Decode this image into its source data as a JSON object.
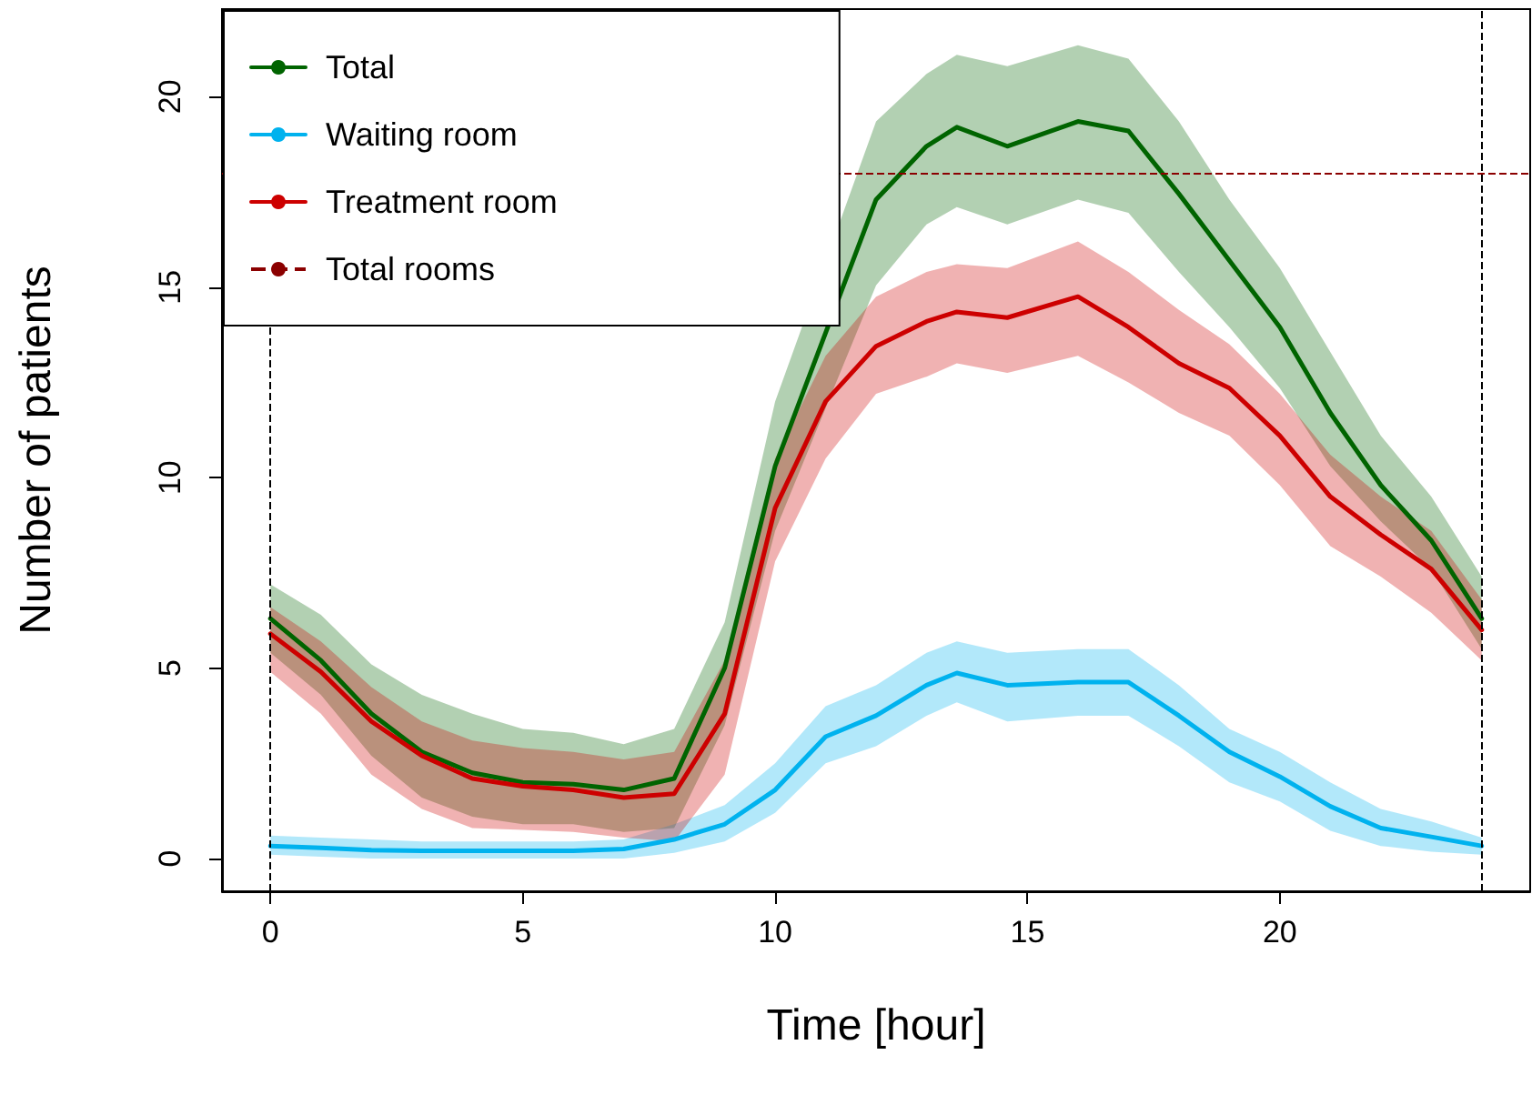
{
  "chart_data": {
    "type": "line",
    "xlabel": "Time [hour]",
    "ylabel": "Number of patients",
    "x": [
      0,
      1,
      2,
      3,
      4,
      5,
      6,
      7,
      8,
      9,
      10,
      11,
      12,
      13,
      13.6,
      14.6,
      16,
      17,
      18,
      19,
      20,
      21,
      22,
      23,
      24
    ],
    "series": [
      {
        "name": "Total",
        "color": "#006400",
        "x": [
          0,
          1,
          2,
          3,
          4,
          5,
          6,
          7,
          8,
          9,
          10,
          12,
          13,
          13.6,
          14.6,
          16,
          17,
          18,
          19,
          20,
          21,
          22,
          23,
          24
        ],
        "values": [
          6.3,
          5.2,
          3.8,
          2.8,
          2.25,
          2.0,
          1.95,
          1.8,
          2.1,
          5.0,
          10.3,
          17.3,
          18.7,
          19.2,
          18.7,
          19.35,
          19.1,
          17.45,
          15.7,
          13.95,
          11.7,
          9.8,
          8.35,
          6.3
        ],
        "upper": [
          7.2,
          6.4,
          5.1,
          4.3,
          3.8,
          3.4,
          3.3,
          3.0,
          3.4,
          6.2,
          12.0,
          19.35,
          20.6,
          21.1,
          20.8,
          21.35,
          21.0,
          19.35,
          17.3,
          15.5,
          13.3,
          11.1,
          9.5,
          7.4
        ],
        "lower": [
          5.4,
          4.3,
          2.7,
          1.6,
          1.1,
          0.9,
          0.9,
          0.7,
          0.8,
          3.5,
          8.6,
          15.05,
          16.65,
          17.1,
          16.65,
          17.3,
          16.95,
          15.4,
          13.95,
          12.35,
          10.3,
          8.85,
          7.6,
          5.5
        ]
      },
      {
        "name": "Waiting room",
        "color": "#00b2ee",
        "values": [
          0.33,
          0.28,
          0.22,
          0.2,
          0.2,
          0.2,
          0.2,
          0.25,
          0.5,
          0.9,
          1.8,
          3.2,
          3.75,
          4.55,
          4.87,
          4.55,
          4.63,
          4.63,
          3.75,
          2.8,
          2.15,
          1.37,
          0.8,
          0.57,
          0.33
        ],
        "upper": [
          0.6,
          0.55,
          0.5,
          0.45,
          0.45,
          0.45,
          0.45,
          0.5,
          0.9,
          1.4,
          2.5,
          4.0,
          4.55,
          5.4,
          5.7,
          5.4,
          5.5,
          5.5,
          4.55,
          3.4,
          2.8,
          2.0,
          1.3,
          0.97,
          0.55
        ],
        "lower": [
          0.1,
          0.05,
          0.0,
          0.0,
          0.0,
          0.0,
          0.0,
          0.0,
          0.15,
          0.45,
          1.2,
          2.5,
          2.95,
          3.75,
          4.1,
          3.6,
          3.75,
          3.75,
          2.95,
          2.0,
          1.5,
          0.73,
          0.33,
          0.18,
          0.1
        ]
      },
      {
        "name": "Treatment room",
        "color": "#cd0000",
        "values": [
          5.9,
          4.9,
          3.6,
          2.7,
          2.1,
          1.9,
          1.8,
          1.6,
          1.7,
          3.8,
          9.2,
          12.0,
          13.45,
          14.1,
          14.35,
          14.2,
          14.75,
          13.95,
          13.0,
          12.35,
          11.1,
          9.5,
          8.5,
          7.6,
          6.0
        ],
        "upper": [
          6.6,
          5.7,
          4.5,
          3.6,
          3.1,
          2.9,
          2.8,
          2.6,
          2.8,
          5.2,
          10.5,
          13.2,
          14.75,
          15.4,
          15.6,
          15.5,
          16.2,
          15.4,
          14.4,
          13.5,
          12.2,
          10.6,
          9.5,
          8.6,
          6.8
        ],
        "lower": [
          4.9,
          3.8,
          2.2,
          1.3,
          0.8,
          0.75,
          0.7,
          0.55,
          0.45,
          2.2,
          7.8,
          10.5,
          12.2,
          12.65,
          13.0,
          12.75,
          13.2,
          12.5,
          11.7,
          11.1,
          9.8,
          8.2,
          7.4,
          6.45,
          5.2
        ]
      }
    ],
    "ref_lines": [
      {
        "axis": "y",
        "value": 18,
        "label": "Total rooms",
        "color": "#8b0000",
        "line_style": "dashed"
      },
      {
        "axis": "x",
        "value": 0,
        "color": "#000000",
        "line_style": "dashed"
      },
      {
        "axis": "x",
        "value": 24,
        "color": "#000000",
        "line_style": "dashed"
      }
    ],
    "xlim": [
      -0.96,
      24.96
    ],
    "ylim": [
      -0.86,
      22.3
    ],
    "xticks": [
      0,
      5,
      10,
      15,
      20
    ],
    "yticks": [
      0,
      5,
      10,
      15,
      20
    ],
    "grid": false,
    "legend": "top left",
    "line_style": "solid",
    "marker": "none"
  }
}
